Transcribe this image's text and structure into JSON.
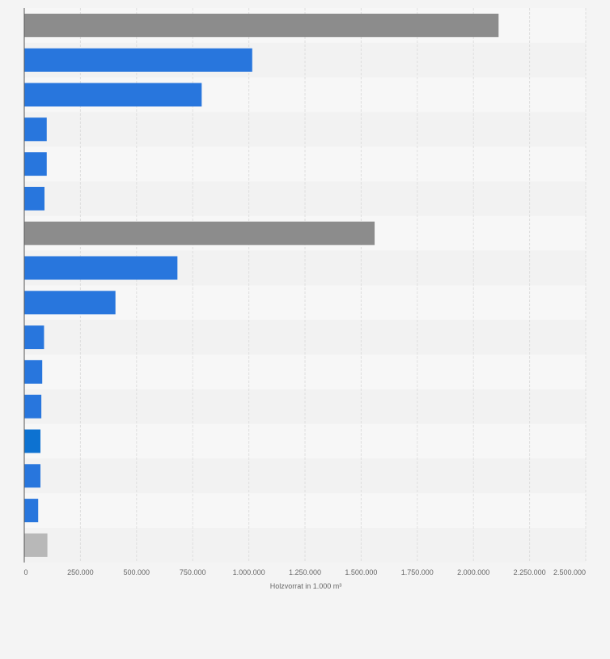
{
  "chart_data": {
    "type": "bar",
    "orientation": "horizontal",
    "title": "",
    "xlabel": "Holzvorrat in 1.000 m³",
    "ylabel": "",
    "xlim": [
      0,
      2500000
    ],
    "tick_values": [
      0,
      250000,
      500000,
      750000,
      1000000,
      1250000,
      1500000,
      1750000,
      2000000,
      2250000,
      2500000
    ],
    "tick_labels": [
      "0",
      "250.000",
      "500.000",
      "750.000",
      "1.000.000",
      "1.250.000",
      "1.500.000",
      "1.750.000",
      "2.000.000",
      "2.250.000",
      "2.500.000"
    ],
    "categories": [
      "",
      "",
      "",
      "",
      "",
      "",
      "",
      "",
      "",
      "",
      "",
      "",
      "",
      "",
      "",
      ""
    ],
    "values": [
      2112000,
      1015000,
      790000,
      100000,
      100000,
      90000,
      1560000,
      682000,
      406000,
      88000,
      80000,
      76000,
      72000,
      72000,
      62000,
      103000
    ],
    "bar_colors": [
      "#8c8c8c",
      "#2876dd",
      "#2876dd",
      "#2876dd",
      "#2876dd",
      "#2876dd",
      "#8c8c8c",
      "#2876dd",
      "#2876dd",
      "#2876dd",
      "#2876dd",
      "#2876dd",
      "#0d72d1",
      "#2876dd",
      "#2876dd",
      "#b8b8b8"
    ],
    "grid": true,
    "legend": "none"
  },
  "colors": {
    "page_background": "#f4f4f4",
    "band_light": "#f7f7f7",
    "band_dark": "#f2f2f2",
    "grid_line": "#dedede",
    "axis_line": "#555555",
    "tick_text": "#666666"
  }
}
